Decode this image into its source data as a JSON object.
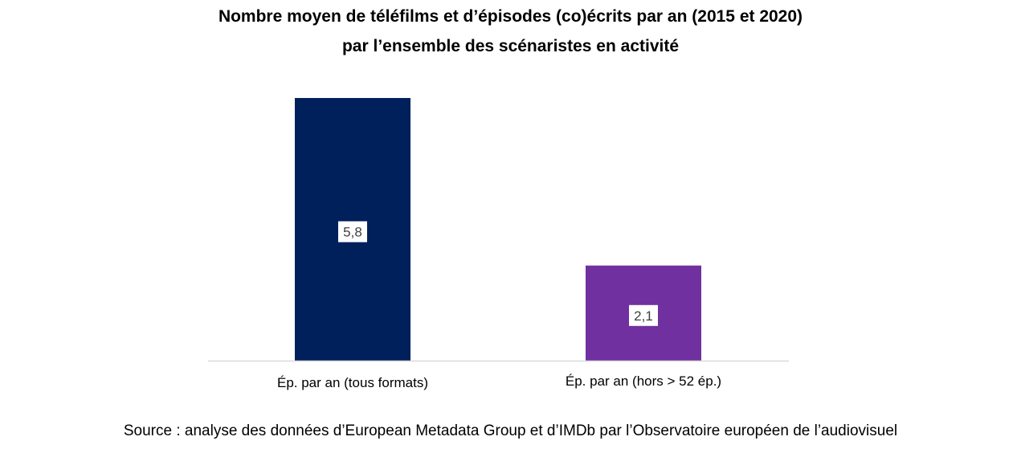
{
  "chart_data": {
    "type": "bar",
    "title": "Nombre moyen de téléfilms et d’épisodes (co)écrits par an (2015 et 2020)",
    "subtitle": "par l’ensemble des scénaristes en activité",
    "categories": [
      "Ép. par an (tous formats)",
      "Ép. par an (hors > 52 ép.)"
    ],
    "values": [
      5.8,
      2.1
    ],
    "value_labels": [
      "5,8",
      "2,1"
    ],
    "colors": [
      "#00205B",
      "#7030A0"
    ],
    "ylim": [
      0,
      6.35
    ],
    "grid": false,
    "legend": "none"
  },
  "source": "Source : analyse des données d’European Metadata Group et d’IMDb par l’Observatoire européen de l’audiovisuel"
}
